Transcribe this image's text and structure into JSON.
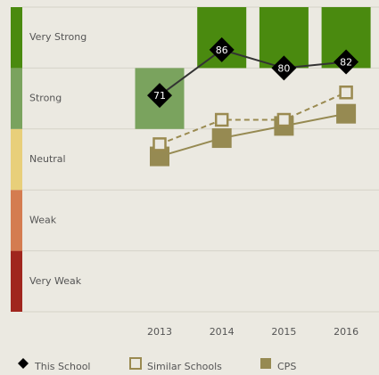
{
  "chart_data": {
    "type": "line",
    "categories": [
      "2013",
      "2014",
      "2015",
      "2016"
    ],
    "ylim": [
      0,
      100
    ],
    "yticks": [
      0,
      20,
      40,
      60,
      80,
      100
    ],
    "bands": [
      {
        "label": "Very Weak",
        "color": "#a0261e"
      },
      {
        "label": "Weak",
        "color": "#d47c50"
      },
      {
        "label": "Neutral",
        "color": "#e8cf7a"
      },
      {
        "label": "Strong",
        "color": "#7aa35e"
      },
      {
        "label": "Very Strong",
        "color": "#4a8a0f"
      }
    ],
    "series": [
      {
        "name": "This School",
        "color": "#000000",
        "values": [
          71,
          86,
          80,
          82
        ]
      },
      {
        "name": "Similar Schools",
        "color": "#9a8a50",
        "values": [
          55,
          63,
          63,
          72
        ]
      },
      {
        "name": "CPS",
        "color": "#968a52",
        "values": [
          51,
          57,
          61,
          65
        ]
      }
    ]
  }
}
